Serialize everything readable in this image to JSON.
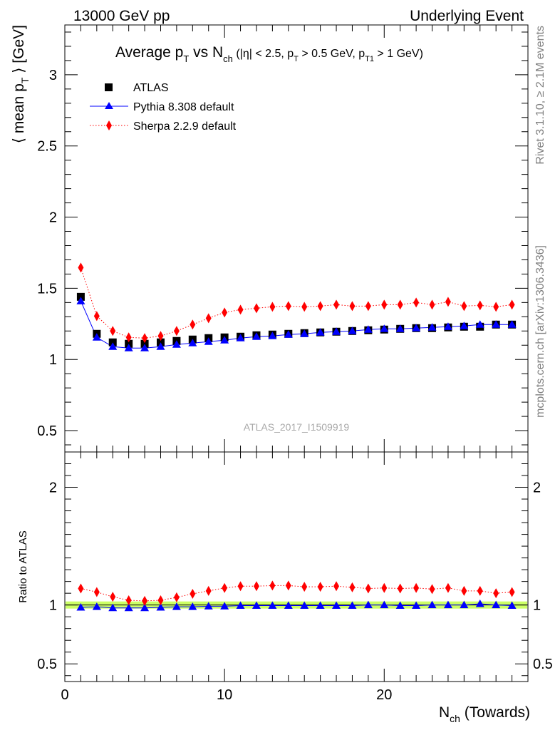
{
  "header": {
    "left": "13000 GeV pp",
    "right": "Underlying Event"
  },
  "side_text": {
    "rivet": "Rivet 3.1.10, ≥ 2.1M events",
    "mcplots": "mcplots.cern.ch [arXiv:1306.3436]"
  },
  "watermark": "ATLAS_2017_I1509919",
  "colors": {
    "atlas": "#000000",
    "pythia": "#0000ff",
    "sherpa": "#ff0000",
    "ref_band": "#ccff66"
  },
  "chart_data": [
    {
      "type": "scatter",
      "title": "Average p_T vs N_ch (|η| < 2.5, p_T > 0.5 GeV, p_T1 > 1 GeV)",
      "ylabel": "⟨ mean p_T ⟩ [GeV]",
      "xlabel": "N_ch (Towards)",
      "xlim": [
        0,
        29
      ],
      "ylim": [
        0.35,
        3.35
      ],
      "yticks": [
        0.5,
        1,
        1.5,
        2,
        2.5,
        3
      ],
      "ytick_labels": [
        "0.5",
        "1",
        "1.5",
        "2",
        "2.5",
        "3"
      ],
      "legend_position": "top-left",
      "x": [
        1,
        2,
        3,
        4,
        5,
        6,
        7,
        8,
        9,
        10,
        11,
        12,
        13,
        14,
        15,
        16,
        17,
        18,
        19,
        20,
        21,
        22,
        23,
        24,
        25,
        26,
        27,
        28
      ],
      "series": [
        {
          "name": "ATLAS",
          "marker": "square",
          "values": [
            1.44,
            1.18,
            1.12,
            1.11,
            1.11,
            1.12,
            1.13,
            1.14,
            1.15,
            1.155,
            1.16,
            1.17,
            1.175,
            1.18,
            1.185,
            1.19,
            1.195,
            1.2,
            1.205,
            1.21,
            1.215,
            1.22,
            1.22,
            1.225,
            1.23,
            1.23,
            1.245,
            1.245
          ]
        },
        {
          "name": "Pythia 8.308 default",
          "marker": "triangle",
          "line": "solid",
          "values": [
            1.41,
            1.155,
            1.09,
            1.08,
            1.08,
            1.09,
            1.105,
            1.115,
            1.125,
            1.135,
            1.15,
            1.16,
            1.165,
            1.175,
            1.18,
            1.19,
            1.195,
            1.2,
            1.21,
            1.215,
            1.215,
            1.22,
            1.225,
            1.23,
            1.235,
            1.245,
            1.245,
            1.245
          ]
        },
        {
          "name": "Sherpa 2.2.9 default",
          "marker": "diamond",
          "line": "dotted",
          "values": [
            1.645,
            1.305,
            1.2,
            1.155,
            1.15,
            1.165,
            1.2,
            1.245,
            1.29,
            1.33,
            1.35,
            1.36,
            1.37,
            1.375,
            1.37,
            1.375,
            1.385,
            1.375,
            1.375,
            1.385,
            1.385,
            1.4,
            1.385,
            1.405,
            1.375,
            1.38,
            1.37,
            1.385
          ]
        }
      ]
    },
    {
      "type": "scatter",
      "ylabel": "Ratio to ATLAS",
      "xlabel": "N_ch (Towards)",
      "xlim": [
        0,
        29
      ],
      "ylim": [
        0.35,
        2.3
      ],
      "xticks": [
        0,
        10,
        20
      ],
      "xtick_labels": [
        "0",
        "10",
        "20"
      ],
      "yticks": [
        0.5,
        1,
        2
      ],
      "ytick_labels": [
        "0.5",
        "1",
        "2"
      ],
      "x": [
        1,
        2,
        3,
        4,
        5,
        6,
        7,
        8,
        9,
        10,
        11,
        12,
        13,
        14,
        15,
        16,
        17,
        18,
        19,
        20,
        21,
        22,
        23,
        24,
        25,
        26,
        27,
        28
      ],
      "series": [
        {
          "name": "Pythia 8.308 default",
          "marker": "triangle",
          "line": "solid",
          "values": [
            0.98,
            0.985,
            0.975,
            0.975,
            0.975,
            0.98,
            0.985,
            0.985,
            0.99,
            0.99,
            0.995,
            0.995,
            0.995,
            0.995,
            0.995,
            0.995,
            0.995,
            0.995,
            1.0,
            1.0,
            0.995,
            0.995,
            1.0,
            1.0,
            1.0,
            1.01,
            1.0,
            0.995
          ]
        },
        {
          "name": "Sherpa 2.2.9 default",
          "marker": "diamond",
          "line": "dotted",
          "values": [
            1.14,
            1.11,
            1.07,
            1.04,
            1.035,
            1.04,
            1.065,
            1.095,
            1.12,
            1.145,
            1.16,
            1.16,
            1.165,
            1.165,
            1.155,
            1.155,
            1.16,
            1.15,
            1.14,
            1.145,
            1.14,
            1.145,
            1.135,
            1.145,
            1.12,
            1.12,
            1.1,
            1.11
          ]
        }
      ]
    }
  ]
}
